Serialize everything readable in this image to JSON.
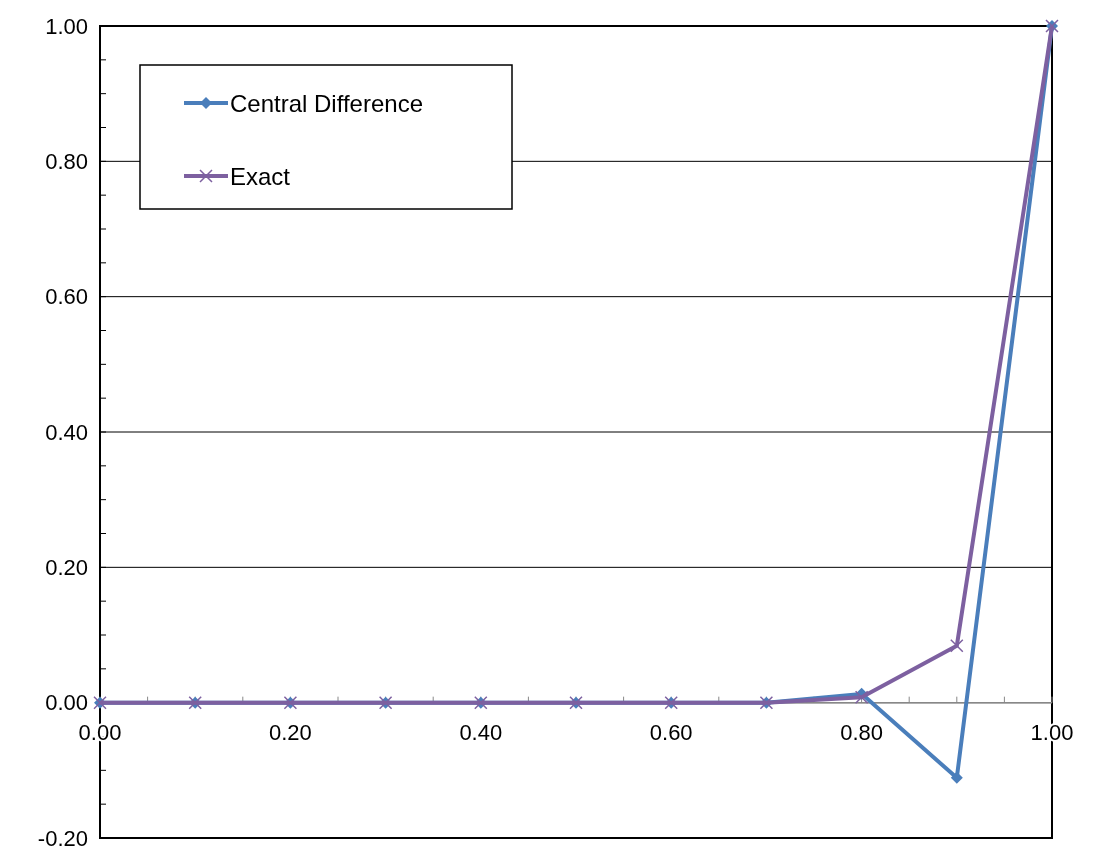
{
  "chart_data": {
    "type": "line",
    "x": [
      0,
      0.1,
      0.2,
      0.3,
      0.4,
      0.5,
      0.6,
      0.7,
      0.8,
      0.9,
      1
    ],
    "series": [
      {
        "name": "Central Difference",
        "color": "#4a7ebb",
        "marker": "diamond",
        "values": [
          0,
          0,
          0,
          0,
          0,
          0,
          0,
          0,
          0.013,
          -0.111,
          1
        ]
      },
      {
        "name": "Exact",
        "color": "#7d60a0",
        "marker": "cross",
        "values": [
          0,
          0,
          0,
          0,
          0,
          0,
          0,
          0,
          0.008,
          0.084,
          1
        ]
      }
    ],
    "xlim": [
      0,
      1
    ],
    "xticks": [
      {
        "value": 0,
        "label": "0.00"
      },
      {
        "value": 0.2,
        "label": "0.20"
      },
      {
        "value": 0.4,
        "label": "0.40"
      },
      {
        "value": 0.6,
        "label": "0.60"
      },
      {
        "value": 0.8,
        "label": "0.80"
      },
      {
        "value": 1,
        "label": "1.00"
      }
    ],
    "ylim": [
      -0.2,
      1
    ],
    "yticks": [
      {
        "value": -0.2,
        "label": "-0.20"
      },
      {
        "value": 0,
        "label": "0.00"
      },
      {
        "value": 0.2,
        "label": "0.20"
      },
      {
        "value": 0.4,
        "label": "0.40"
      },
      {
        "value": 0.6,
        "label": "0.60"
      },
      {
        "value": 0.8,
        "label": "0.80"
      },
      {
        "value": 1,
        "label": "1.00"
      }
    ],
    "grid": "y",
    "legend": "top left"
  }
}
